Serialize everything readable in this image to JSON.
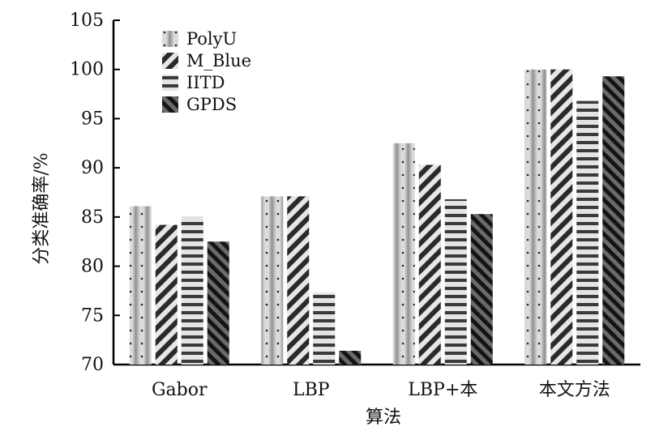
{
  "chart_data": {
    "type": "bar",
    "categories": [
      "Gabor",
      "LBP",
      "LBP+本",
      "本文方法"
    ],
    "xlabel": "算法",
    "ylabel": "分类准确率/%",
    "ylim": [
      70,
      105
    ],
    "yticks": [
      70,
      75,
      80,
      85,
      90,
      95,
      100,
      105
    ],
    "grid": false,
    "legend_position": "top-left",
    "series": [
      {
        "name": "PolyU",
        "pattern": "dots",
        "values": [
          86.1,
          87.1,
          92.5,
          100.0
        ]
      },
      {
        "name": "M_Blue",
        "pattern": "diagonal-stripes",
        "values": [
          84.2,
          87.1,
          90.3,
          100.0
        ]
      },
      {
        "name": "IITD",
        "pattern": "horizontal-stripes",
        "values": [
          85.0,
          77.3,
          86.8,
          96.8
        ]
      },
      {
        "name": "GPDS",
        "pattern": "dark-diagonal",
        "values": [
          82.5,
          71.4,
          85.3,
          99.3
        ]
      }
    ]
  }
}
